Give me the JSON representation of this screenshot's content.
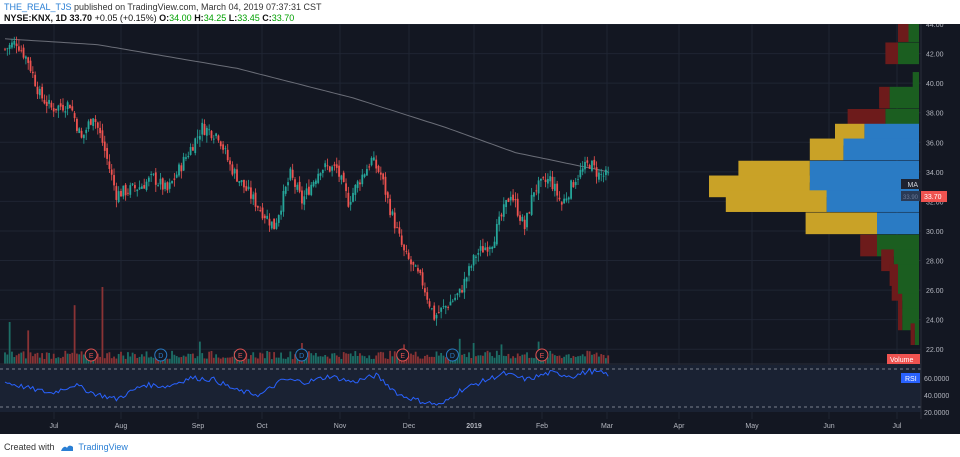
{
  "header": {
    "author": "THE_REAL_TJS",
    "published_text": "published on TradingView.com, March 04, 2019 07:37:31 CST",
    "symbol_line": "NYSE:KNX, 1D",
    "last": "33.70",
    "change": "+0.05 (+0.15%)",
    "o_label": "O:",
    "o_value": "34.00",
    "h_label": "H:",
    "h_value": "34.25",
    "l_label": "L:",
    "l_value": "33.45",
    "c_label": "C:",
    "c_value": "33.70"
  },
  "footer": {
    "created_with": "Created with",
    "brand": "TradingView"
  },
  "labels": {
    "ma": "MA",
    "ma_value": "33.90",
    "price_badge": "33.70",
    "volume": "Volume",
    "rsi": "RSI"
  },
  "colors": {
    "background": "#131722",
    "up": "#26a69a",
    "down": "#ef5350",
    "ma_line": "#6b6e78",
    "rsi_line": "#2962ff",
    "vp_up_gold": "#c9a227",
    "vp_down_blue": "#2a7bc4",
    "vp_upper_green": "#1b5e20",
    "vp_upper_red": "#6d1b1b",
    "earnings": "#e05252",
    "dividend": "#2a7bc4"
  },
  "chart_data": {
    "type": "candlestick",
    "title": "NYSE:KNX, 1D",
    "price_axis": {
      "min": 21,
      "max": 44,
      "ticks": [
        "44.00",
        "42.00",
        "40.00",
        "38.00",
        "36.00",
        "34.00",
        "32.00",
        "30.00",
        "28.00",
        "26.00",
        "24.00",
        "22.00"
      ]
    },
    "x_tick_labels": [
      "Jul",
      "Aug",
      "Sep",
      "Oct",
      "Nov",
      "Dec",
      "2019",
      "Feb",
      "Mar",
      "Apr",
      "May",
      "Jun",
      "Jul"
    ],
    "x_start": "2018-06-04",
    "price_anchors": [
      [
        0,
        42.3
      ],
      [
        5,
        42.8
      ],
      [
        10,
        41.5
      ],
      [
        15,
        39.2
      ],
      [
        20,
        38.3
      ],
      [
        28,
        38.6
      ],
      [
        33,
        36.2
      ],
      [
        38,
        37.9
      ],
      [
        42,
        36.0
      ],
      [
        48,
        32.5
      ],
      [
        58,
        33.0
      ],
      [
        64,
        33.6
      ],
      [
        70,
        32.7
      ],
      [
        80,
        35.6
      ],
      [
        85,
        37.0
      ],
      [
        92,
        36.5
      ],
      [
        97,
        34.4
      ],
      [
        103,
        33.0
      ],
      [
        110,
        31.5
      ],
      [
        116,
        30.3
      ],
      [
        123,
        33.8
      ],
      [
        128,
        32.0
      ],
      [
        136,
        34.3
      ],
      [
        143,
        34.2
      ],
      [
        148,
        32.0
      ],
      [
        153,
        33.5
      ],
      [
        158,
        34.8
      ],
      [
        162,
        33.8
      ],
      [
        166,
        31.5
      ],
      [
        172,
        28.5
      ],
      [
        180,
        26.5
      ],
      [
        185,
        24.2
      ],
      [
        190,
        24.9
      ],
      [
        196,
        25.8
      ],
      [
        203,
        28.4
      ],
      [
        210,
        29.3
      ],
      [
        218,
        32.6
      ],
      [
        224,
        30.2
      ],
      [
        228,
        32.8
      ],
      [
        235,
        33.5
      ],
      [
        240,
        31.8
      ],
      [
        246,
        33.6
      ],
      [
        252,
        34.6
      ],
      [
        256,
        33.8
      ],
      [
        260,
        33.7
      ]
    ],
    "ma_anchors": [
      [
        0,
        43.0
      ],
      [
        40,
        42.6
      ],
      [
        100,
        41.0
      ],
      [
        150,
        39.0
      ],
      [
        190,
        37.0
      ],
      [
        220,
        35.3
      ],
      [
        260,
        34.0
      ]
    ],
    "rsi_axis": {
      "ticks": [
        "60.0000",
        "40.0000",
        "20.0000"
      ],
      "overbought": 70,
      "oversold": 30
    },
    "rsi_anchors": [
      [
        0,
        55
      ],
      [
        10,
        48
      ],
      [
        20,
        42
      ],
      [
        30,
        52
      ],
      [
        38,
        42
      ],
      [
        48,
        35
      ],
      [
        60,
        52
      ],
      [
        70,
        50
      ],
      [
        80,
        60
      ],
      [
        90,
        58
      ],
      [
        100,
        45
      ],
      [
        110,
        40
      ],
      [
        120,
        58
      ],
      [
        130,
        55
      ],
      [
        140,
        62
      ],
      [
        150,
        55
      ],
      [
        160,
        63
      ],
      [
        170,
        40
      ],
      [
        180,
        32
      ],
      [
        188,
        28
      ],
      [
        196,
        45
      ],
      [
        205,
        55
      ],
      [
        215,
        65
      ],
      [
        225,
        58
      ],
      [
        235,
        66
      ],
      [
        245,
        62
      ],
      [
        252,
        68
      ],
      [
        260,
        64
      ]
    ],
    "volume_spikes": [
      [
        2,
        3.0
      ],
      [
        10,
        2.4
      ],
      [
        30,
        4.2
      ],
      [
        42,
        5.5
      ],
      [
        84,
        1.6
      ],
      [
        128,
        1.5
      ],
      [
        172,
        1.4
      ],
      [
        196,
        1.8
      ],
      [
        202,
        1.5
      ],
      [
        214,
        1.4
      ],
      [
        230,
        1.6
      ]
    ],
    "events": [
      {
        "type": "E",
        "date": "2018-07-26"
      },
      {
        "type": "D",
        "date": "2018-09-06"
      },
      {
        "type": "E",
        "date": "2018-10-24"
      },
      {
        "type": "D",
        "date": "2018-11-30"
      },
      {
        "type": "E",
        "date": "2019-01-30"
      },
      {
        "type": "D",
        "date": "2019-03-01"
      },
      {
        "type": "E",
        "date": "2019-04-24"
      }
    ],
    "volume_profile": [
      {
        "price": 43.5,
        "up": 0.05,
        "down": 0.05,
        "side": "upper"
      },
      {
        "price": 42.0,
        "up": 0.06,
        "down": 0.1,
        "side": "upper"
      },
      {
        "price": 40.0,
        "up": 0.0,
        "down": 0.03,
        "side": "upper"
      },
      {
        "price": 39.0,
        "up": 0.05,
        "down": 0.14,
        "side": "upper"
      },
      {
        "price": 37.5,
        "up": 0.18,
        "down": 0.16,
        "side": "upper"
      },
      {
        "price": 36.5,
        "up": 0.14,
        "down": 0.26,
        "side": "main"
      },
      {
        "price": 35.5,
        "up": 0.16,
        "down": 0.36,
        "side": "main"
      },
      {
        "price": 34.0,
        "up": 0.34,
        "down": 0.52,
        "side": "main"
      },
      {
        "price": 33.0,
        "up": 0.48,
        "down": 0.52,
        "side": "main"
      },
      {
        "price": 32.0,
        "up": 0.48,
        "down": 0.44,
        "side": "main"
      },
      {
        "price": 30.5,
        "up": 0.34,
        "down": 0.2,
        "side": "main"
      },
      {
        "price": 29.0,
        "up": 0.08,
        "down": 0.2,
        "side": "lower"
      },
      {
        "price": 28.0,
        "up": 0.06,
        "down": 0.12,
        "side": "lower"
      },
      {
        "price": 27.0,
        "up": 0.04,
        "down": 0.1,
        "side": "lower"
      },
      {
        "price": 26.0,
        "up": 0.03,
        "down": 0.1,
        "side": "lower"
      },
      {
        "price": 25.0,
        "up": 0.02,
        "down": 0.08,
        "side": "lower"
      },
      {
        "price": 24.0,
        "up": 0.02,
        "down": 0.08,
        "side": "lower"
      },
      {
        "price": 23.0,
        "up": 0.02,
        "down": 0.02,
        "side": "lower"
      }
    ]
  }
}
